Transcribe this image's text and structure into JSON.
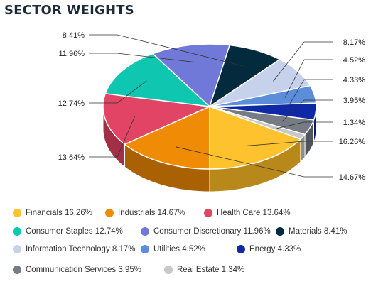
{
  "title": "SECTOR WEIGHTS",
  "chart_data": {
    "type": "pie",
    "title": "SECTOR WEIGHTS",
    "legend_position": "bottom",
    "slices": [
      {
        "name": "Financials",
        "value": 16.26,
        "label": "16.26%",
        "legend": "Financials 16.26%",
        "color": "#fdc22e",
        "side": "#b8891a"
      },
      {
        "name": "Industrials",
        "value": 14.67,
        "label": "14.67%",
        "legend": "Industrials 14.67%",
        "color": "#ef8b05",
        "side": "#a96103"
      },
      {
        "name": "Health Care",
        "value": 13.64,
        "label": "13.64%",
        "legend": "Health Care 13.64%",
        "color": "#e24465",
        "side": "#a32f47"
      },
      {
        "name": "Consumer Staples",
        "value": 12.74,
        "label": "12.74%",
        "legend": "Consumer Staples 12.74%",
        "color": "#0fc6b1",
        "side": "#0a8a7c"
      },
      {
        "name": "Consumer Discretionary",
        "value": 11.96,
        "label": "11.96%",
        "legend": "Consumer Discretionary 11.96%",
        "color": "#7079d7",
        "side": "#4e5597"
      },
      {
        "name": "Materials",
        "value": 8.41,
        "label": "8.41%",
        "legend": "Materials 8.41%",
        "color": "#042a3e",
        "side": "#021a27"
      },
      {
        "name": "Information Technology",
        "value": 8.17,
        "label": "8.17%",
        "legend": "Information Technology 8.17%",
        "color": "#c6d2ec",
        "side": "#8c96ad"
      },
      {
        "name": "Utilities",
        "value": 4.52,
        "label": "4.52%",
        "legend": "Utilities 4.52%",
        "color": "#5b8ddb",
        "side": "#3f639a"
      },
      {
        "name": "Energy",
        "value": 4.33,
        "label": "4.33%",
        "legend": "Energy 4.33%",
        "color": "#0e28a6",
        "side": "#091b73"
      },
      {
        "name": "Communication Services",
        "value": 3.95,
        "label": "3.95%",
        "legend": "Communication Services 3.95%",
        "color": "#757c84",
        "side": "#51565c"
      },
      {
        "name": "Real Estate",
        "value": 1.34,
        "label": "1.34%",
        "legend": "Real Estate 1.34%",
        "color": "#c8c8c8",
        "side": "#8e8e8e"
      }
    ]
  }
}
